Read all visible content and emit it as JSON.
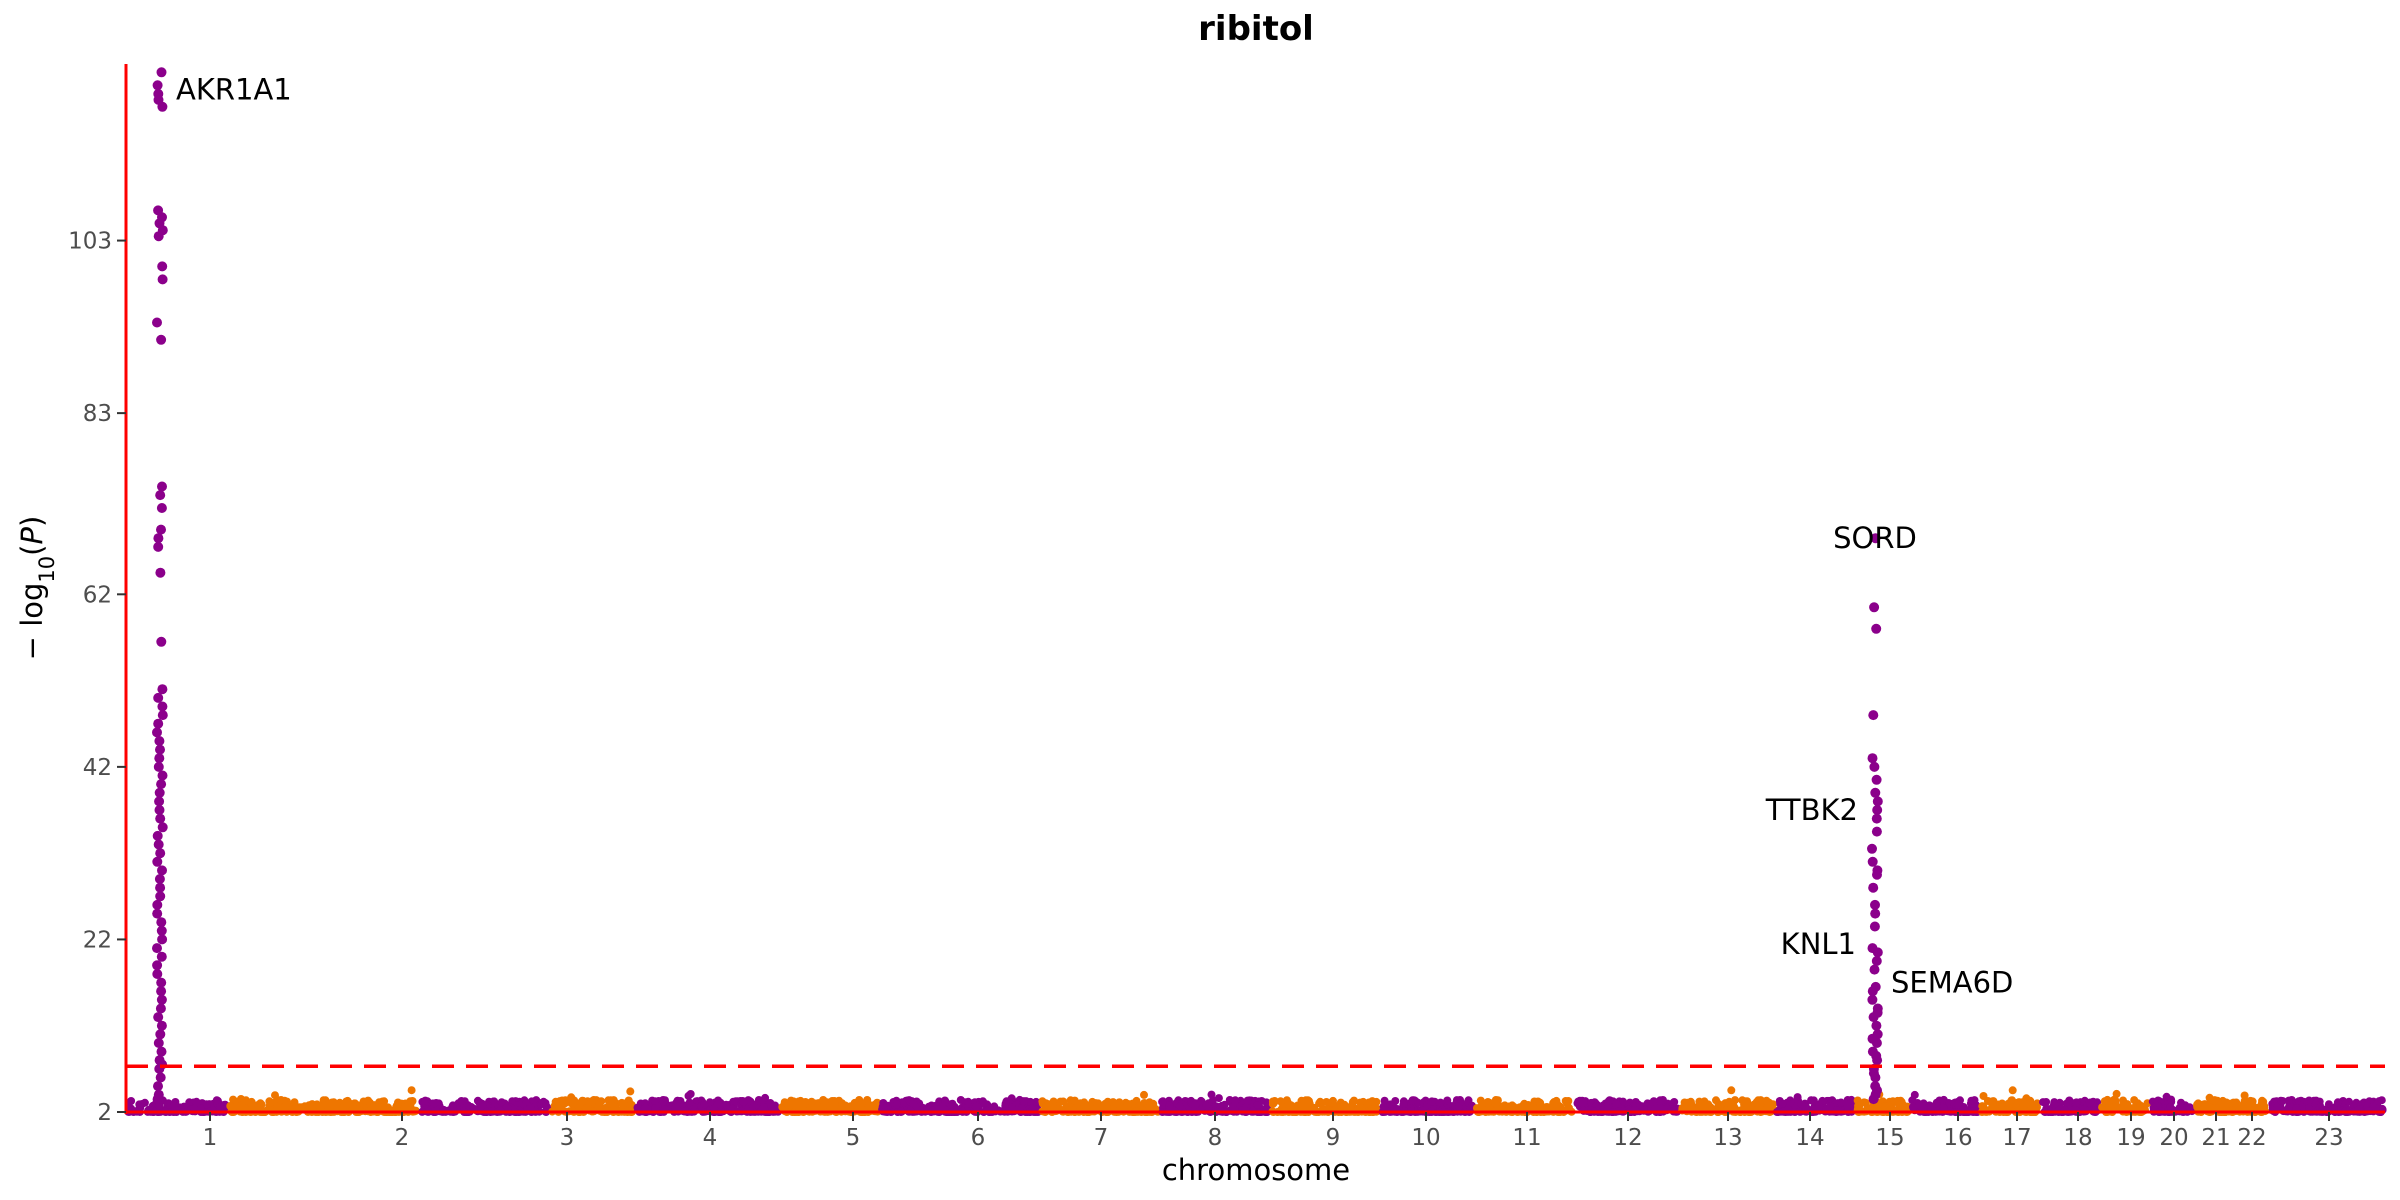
{
  "chart_data": {
    "type": "scatter",
    "subtype": "manhattan",
    "title": "ribitol",
    "xlabel": "chromosome",
    "ylabel_parts": {
      "prefix": "− log",
      "subscript": "10",
      "open": "(",
      "italic": "P",
      "close": ")"
    },
    "ylim": [
      2,
      123
    ],
    "y_ticks": [
      2,
      22,
      42,
      62,
      83,
      103
    ],
    "grid": false,
    "legend": "none",
    "significance_line": 7.3,
    "colors": {
      "purple": "#8b008b",
      "orange": "#ee7600",
      "threshold": "#ff0000",
      "axis": "#ff0000"
    },
    "chromosomes": [
      {
        "label": "1",
        "color": "purple"
      },
      {
        "label": "2",
        "color": "orange"
      },
      {
        "label": "3",
        "color": "purple"
      },
      {
        "label": "4",
        "color": "orange"
      },
      {
        "label": "5",
        "color": "purple"
      },
      {
        "label": "6",
        "color": "orange"
      },
      {
        "label": "7",
        "color": "purple"
      },
      {
        "label": "8",
        "color": "orange"
      },
      {
        "label": "9",
        "color": "purple"
      },
      {
        "label": "10",
        "color": "orange"
      },
      {
        "label": "11",
        "color": "purple"
      },
      {
        "label": "12",
        "color": "orange"
      },
      {
        "label": "13",
        "color": "purple"
      },
      {
        "label": "14",
        "color": "orange"
      },
      {
        "label": "15",
        "color": "purple"
      },
      {
        "label": "16",
        "color": "orange"
      },
      {
        "label": "17",
        "color": "purple"
      },
      {
        "label": "18",
        "color": "orange"
      },
      {
        "label": "19",
        "color": "purple"
      },
      {
        "label": "20",
        "color": "orange"
      },
      {
        "label": "21",
        "color": "purple"
      },
      {
        "label": "22",
        "color": "orange"
      },
      {
        "label": "23",
        "color": "purple"
      }
    ],
    "peaks": [
      {
        "chromosome": "1",
        "color": "purple",
        "y_values": [
          122.5,
          121.0,
          120.0,
          119.3,
          118.5,
          106.5,
          105.7,
          105.0,
          104.2,
          103.5,
          100.0,
          98.5,
          93.5,
          91.5,
          74.5,
          73.5,
          72.0,
          69.5,
          68.5,
          67.5,
          64.5,
          56.5,
          51.0,
          50.0,
          49.0,
          48.0,
          47.0,
          46.0,
          45.0,
          44.0,
          43.0,
          42.0,
          41.0,
          40.0,
          39.0,
          38.0,
          37.0,
          36.0,
          35.0,
          34.0,
          33.0,
          32.0,
          31.0,
          30.0,
          29.0,
          28.0,
          27.0,
          26.0,
          25.0,
          24.0,
          23.0,
          22.0,
          21.0,
          20.0,
          19.0,
          18.0,
          17.0,
          16.0,
          15.0,
          14.0,
          13.0,
          12.0,
          11.0,
          10.0,
          9.0,
          8.0,
          7.5,
          7.0,
          6.0,
          5.0,
          4.0,
          3.5
        ]
      },
      {
        "chromosome": "15",
        "color": "purple",
        "y_values": [
          68.5,
          60.5,
          58.0,
          48.0,
          43.0,
          42.0,
          40.5,
          39.0,
          38.0,
          37.0,
          36.0,
          34.5,
          32.5,
          31.0,
          30.0,
          29.5,
          28.0,
          26.0,
          25.0,
          23.5,
          21.0,
          20.5,
          19.5,
          18.5,
          16.5,
          16.0,
          15.0,
          14.0,
          13.5,
          13.0,
          12.0,
          11.0,
          10.5,
          10.0,
          9.0,
          8.5,
          8.0,
          7.0,
          6.5,
          6.0,
          5.0,
          4.5,
          4.0,
          3.5
        ]
      }
    ],
    "annotations": [
      {
        "label": "AKR1A1",
        "chromosome": "1",
        "y": 120.5
      },
      {
        "label": "SORD",
        "chromosome": "15",
        "y": 68.5
      },
      {
        "label": "TTBK2",
        "chromosome": "15",
        "y": 37.0
      },
      {
        "label": "KNL1",
        "chromosome": "15",
        "y": 21.5
      },
      {
        "label": "SEMA6D",
        "chromosome": "15",
        "y": 17.0
      }
    ]
  }
}
